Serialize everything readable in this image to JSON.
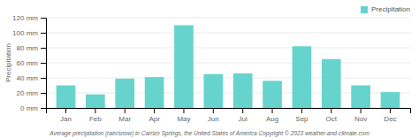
{
  "chart_data": {
    "type": "bar",
    "categories": [
      "Jan",
      "Feb",
      "Mar",
      "Apr",
      "May",
      "Jun",
      "Jul",
      "Aug",
      "Sep",
      "Oct",
      "Nov",
      "Dec"
    ],
    "series": [
      {
        "name": "Precipitation",
        "color": "#66d4cc",
        "values": [
          30,
          18,
          39,
          41,
          110,
          45,
          46,
          36,
          82,
          65,
          30,
          21
        ]
      }
    ],
    "ylabel": "Precipitation",
    "caption": "Average precipitation (rain/snow) in Carrizo Springs, the United States of America   Copyright © 2023  weather-and-climate.com",
    "ylim": [
      0,
      120
    ],
    "yticks": [
      {
        "value": 0,
        "label": "0 mm"
      },
      {
        "value": 20,
        "label": "20 mm"
      },
      {
        "value": 40,
        "label": "40 mm"
      },
      {
        "value": 60,
        "label": "60 mm"
      },
      {
        "value": 80,
        "label": "80 mm"
      },
      {
        "value": 100,
        "label": "100 mm"
      },
      {
        "value": 120,
        "label": "120 mm"
      }
    ],
    "grid": true,
    "legend": "upper right"
  }
}
